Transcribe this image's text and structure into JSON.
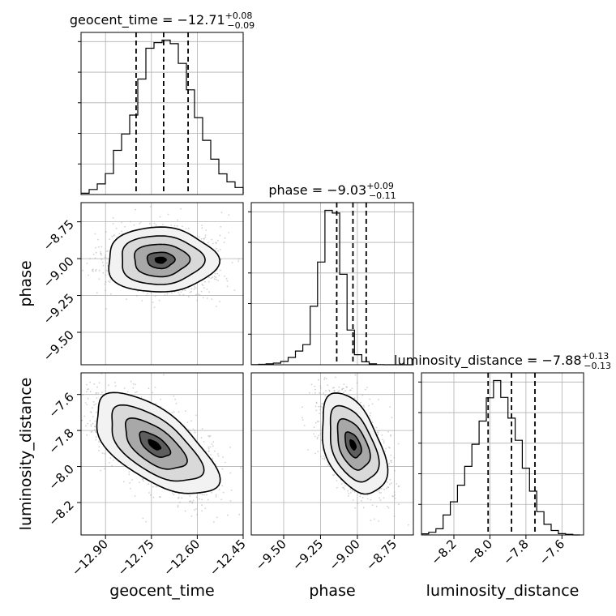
{
  "chart_data": {
    "type": "corner",
    "parameters": [
      {
        "name": "geocent_time",
        "label": "geocent_time",
        "title": {
          "prefix": "geocent_time = ",
          "median": "−12.71",
          "plus": "+0.08",
          "minus": "−0.09"
        },
        "quantiles": [
          -12.8,
          -12.71,
          -12.63
        ],
        "range": [
          -12.98,
          -12.45
        ],
        "ticks": [
          -12.9,
          -12.75,
          -12.6,
          -12.45
        ],
        "tick_labels": [
          "−12.90",
          "−12.75",
          "−12.60",
          "−12.45"
        ],
        "hist": {
          "edges_start": -12.98,
          "bin_width": 0.0265,
          "counts": [
            5,
            20,
            42,
            83,
            175,
            240,
            315,
            458,
            580,
            602,
            612,
            598,
            520,
            415,
            305,
            215,
            140,
            82,
            50,
            28,
            10,
            3
          ]
        }
      },
      {
        "name": "phase",
        "label": "phase",
        "title": {
          "prefix": "phase = ",
          "median": "−9.03",
          "plus": "+0.09",
          "minus": "−0.11"
        },
        "quantiles": [
          -9.14,
          -9.03,
          -8.94
        ],
        "range": [
          -9.72,
          -8.62
        ],
        "ticks": [
          -9.5,
          -9.25,
          -9.0,
          -8.75
        ],
        "tick_labels": [
          "−9.50",
          "−9.25",
          "−9.00",
          "−8.75"
        ],
        "hist": {
          "edges_start": -9.72,
          "bin_width": 0.05,
          "counts": [
            1,
            2,
            5,
            9,
            18,
            40,
            75,
            110,
            320,
            562,
            845,
            830,
            495,
            190,
            55,
            16,
            5,
            1,
            0,
            0,
            0,
            0
          ]
        }
      },
      {
        "name": "luminosity_distance",
        "label": "luminosity_distance",
        "title": {
          "prefix": "luminosity_distance = ",
          "median": "−7.88",
          "plus": "+0.13",
          "minus": "−0.13"
        },
        "quantiles": [
          -8.01,
          -7.88,
          -7.75
        ],
        "range": [
          -8.38,
          -7.48
        ],
        "ticks": [
          -8.2,
          -8.0,
          -7.8,
          -7.6
        ],
        "tick_labels": [
          "−8.2",
          "−8.0",
          "−7.8",
          "−7.6"
        ],
        "hist": {
          "edges_start": -8.38,
          "bin_width": 0.04,
          "counts": [
            5,
            12,
            28,
            90,
            150,
            225,
            310,
            410,
            515,
            620,
            698,
            622,
            528,
            428,
            302,
            198,
            105,
            48,
            20,
            6,
            3,
            0
          ]
        }
      }
    ],
    "y_label_params": [
      "phase",
      "luminosity_distance"
    ],
    "x_label_params": [
      "geocent_time",
      "phase",
      "luminosity_distance"
    ],
    "pairs": [
      {
        "x": "geocent_time",
        "y": "phase",
        "center": [
          -12.72,
          -9.01
        ],
        "sigma": [
          0.09,
          0.11
        ],
        "rho": 0.0,
        "n_points": 1400,
        "contour_levels": [
          0.5,
          1.0,
          1.5,
          2.0
        ]
      },
      {
        "x": "geocent_time",
        "y": "luminosity_distance",
        "center": [
          -12.74,
          -7.88
        ],
        "sigma": [
          0.1,
          0.14
        ],
        "rho": -0.62,
        "n_points": 1400,
        "contour_levels": [
          0.5,
          1.0,
          1.5,
          2.0
        ]
      },
      {
        "x": "phase",
        "y": "luminosity_distance",
        "center": [
          -9.03,
          -7.88
        ],
        "sigma": [
          0.11,
          0.14
        ],
        "rho": -0.45,
        "n_points": 1400,
        "contour_levels": [
          0.5,
          1.0,
          1.5,
          2.0
        ]
      }
    ],
    "grid": true,
    "line_color": "#000000",
    "point_color": "#9a9a9a"
  }
}
